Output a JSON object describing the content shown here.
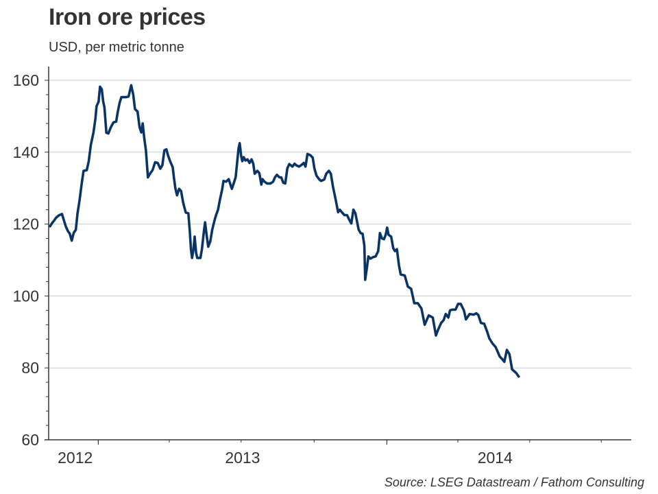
{
  "header": {
    "title": "Iron ore prices",
    "subtitle": "USD, per metric tonne"
  },
  "footer": {
    "source": "Source: LSEG Datastream / Fathom Consulting"
  },
  "colors": {
    "line": "#0b3466",
    "grid": "#cccccc",
    "axis": "#333333",
    "text": "#333333"
  },
  "chart_data": {
    "type": "line",
    "title": "Iron ore prices",
    "subtitle": "USD, per metric tonne",
    "xlabel": "",
    "ylabel": "USD, per metric tonne",
    "ylim": [
      60,
      165
    ],
    "xlim": [
      2012.078,
      2014.097
    ],
    "grid": true,
    "legend": "none",
    "y_ticks": [
      60,
      80,
      100,
      120,
      140,
      160
    ],
    "y_tick_labels": [
      "60",
      "80",
      "100",
      "120",
      "140",
      "160"
    ],
    "y_minor_step": 4,
    "x_major_ticks": [
      2012.25,
      2013.25
    ],
    "x_minor_ticks": [
      2012.496,
      2012.745,
      2012.998,
      2013.496,
      2013.745,
      2013.993
    ],
    "x_tick_labels": [
      {
        "label": "2012",
        "at": 2012.17
      },
      {
        "label": "2013",
        "at": 2012.75
      },
      {
        "label": "2014",
        "at": 2013.625
      }
    ],
    "series": [
      {
        "name": "Iron ore price",
        "points": [
          [
            2012.083,
            119.4
          ],
          [
            2012.09,
            120.3
          ],
          [
            2012.097,
            121.0
          ],
          [
            2012.104,
            121.8
          ],
          [
            2012.113,
            122.4
          ],
          [
            2012.124,
            122.8
          ],
          [
            2012.131,
            121.0
          ],
          [
            2012.138,
            119.2
          ],
          [
            2012.145,
            118.0
          ],
          [
            2012.151,
            117.4
          ],
          [
            2012.158,
            115.4
          ],
          [
            2012.165,
            117.6
          ],
          [
            2012.172,
            118.4
          ],
          [
            2012.178,
            123.0
          ],
          [
            2012.185,
            126.5
          ],
          [
            2012.192,
            131.0
          ],
          [
            2012.199,
            134.8
          ],
          [
            2012.21,
            135.0
          ],
          [
            2012.217,
            137.5
          ],
          [
            2012.224,
            142.0
          ],
          [
            2012.233,
            145.4
          ],
          [
            2012.24,
            149.3
          ],
          [
            2012.244,
            152.8
          ],
          [
            2012.251,
            154.0
          ],
          [
            2012.256,
            158.2
          ],
          [
            2012.262,
            157.5
          ],
          [
            2012.267,
            154.0
          ],
          [
            2012.271,
            152.6
          ],
          [
            2012.278,
            145.4
          ],
          [
            2012.285,
            145.2
          ],
          [
            2012.294,
            147.0
          ],
          [
            2012.303,
            148.3
          ],
          [
            2012.312,
            148.5
          ],
          [
            2012.317,
            151.0
          ],
          [
            2012.324,
            153.8
          ],
          [
            2012.33,
            155.3
          ],
          [
            2012.346,
            155.3
          ],
          [
            2012.355,
            155.5
          ],
          [
            2012.364,
            158.6
          ],
          [
            2012.371,
            156.0
          ],
          [
            2012.377,
            152.0
          ],
          [
            2012.386,
            151.3
          ],
          [
            2012.393,
            147.0
          ],
          [
            2012.399,
            145.5
          ],
          [
            2012.404,
            148.0
          ],
          [
            2012.409,
            144.0
          ],
          [
            2012.415,
            140.5
          ],
          [
            2012.422,
            133.0
          ],
          [
            2012.429,
            134.0
          ],
          [
            2012.438,
            135.0
          ],
          [
            2012.447,
            137.2
          ],
          [
            2012.456,
            137.0
          ],
          [
            2012.465,
            135.4
          ],
          [
            2012.472,
            136.4
          ],
          [
            2012.479,
            140.5
          ],
          [
            2012.486,
            140.8
          ],
          [
            2012.492,
            139.0
          ],
          [
            2012.499,
            137.5
          ],
          [
            2012.508,
            135.8
          ],
          [
            2012.512,
            133.0
          ],
          [
            2012.517,
            130.0
          ],
          [
            2012.523,
            128.0
          ],
          [
            2012.53,
            129.8
          ],
          [
            2012.537,
            129.2
          ],
          [
            2012.544,
            126.0
          ],
          [
            2012.553,
            123.2
          ],
          [
            2012.562,
            123.0
          ],
          [
            2012.567,
            118.0
          ],
          [
            2012.571,
            113.0
          ],
          [
            2012.575,
            110.6
          ],
          [
            2012.58,
            113.0
          ],
          [
            2012.584,
            116.5
          ],
          [
            2012.589,
            112.0
          ],
          [
            2012.593,
            110.6
          ],
          [
            2012.604,
            110.6
          ],
          [
            2012.609,
            113.0
          ],
          [
            2012.616,
            118.0
          ],
          [
            2012.62,
            120.5
          ],
          [
            2012.625,
            117.2
          ],
          [
            2012.631,
            113.7
          ],
          [
            2012.638,
            115.2
          ],
          [
            2012.645,
            118.5
          ],
          [
            2012.652,
            120.8
          ],
          [
            2012.658,
            122.5
          ],
          [
            2012.665,
            124.0
          ],
          [
            2012.672,
            127.0
          ],
          [
            2012.679,
            129.5
          ],
          [
            2012.684,
            132.0
          ],
          [
            2012.693,
            131.8
          ],
          [
            2012.702,
            132.5
          ],
          [
            2012.708,
            131.0
          ],
          [
            2012.713,
            129.8
          ],
          [
            2012.72,
            131.5
          ],
          [
            2012.726,
            133.0
          ],
          [
            2012.731,
            137.0
          ],
          [
            2012.736,
            141.0
          ],
          [
            2012.74,
            142.5
          ],
          [
            2012.745,
            139.0
          ],
          [
            2012.749,
            137.5
          ],
          [
            2012.754,
            138.6
          ],
          [
            2012.76,
            137.7
          ],
          [
            2012.767,
            138.0
          ],
          [
            2012.774,
            137.0
          ],
          [
            2012.781,
            138.0
          ],
          [
            2012.787,
            136.8
          ],
          [
            2012.792,
            134.0
          ],
          [
            2012.801,
            134.8
          ],
          [
            2012.808,
            134.2
          ],
          [
            2012.815,
            131.0
          ],
          [
            2012.819,
            132.5
          ],
          [
            2012.826,
            131.8
          ],
          [
            2012.835,
            131.3
          ],
          [
            2012.847,
            131.3
          ],
          [
            2012.856,
            131.8
          ],
          [
            2012.862,
            133.0
          ],
          [
            2012.869,
            133.7
          ],
          [
            2012.878,
            133.0
          ],
          [
            2012.884,
            133.0
          ],
          [
            2012.891,
            131.5
          ],
          [
            2012.898,
            131.3
          ],
          [
            2012.905,
            135.5
          ],
          [
            2012.912,
            136.7
          ],
          [
            2012.923,
            136.0
          ],
          [
            2012.93,
            136.8
          ],
          [
            2012.937,
            136.3
          ],
          [
            2012.946,
            136.0
          ],
          [
            2012.955,
            136.5
          ],
          [
            2012.962,
            137.0
          ],
          [
            2012.968,
            136.0
          ],
          [
            2012.975,
            139.5
          ],
          [
            2012.984,
            139.2
          ],
          [
            2012.993,
            138.5
          ],
          [
            2012.999,
            135.5
          ],
          [
            2013.006,
            133.5
          ],
          [
            2013.015,
            132.5
          ],
          [
            2013.022,
            132.0
          ],
          [
            2013.033,
            132.4
          ],
          [
            2013.04,
            134.0
          ],
          [
            2013.049,
            134.8
          ],
          [
            2013.056,
            134.0
          ],
          [
            2013.063,
            130.5
          ],
          [
            2013.072,
            127.0
          ],
          [
            2013.081,
            123.3
          ],
          [
            2013.087,
            124.0
          ],
          [
            2013.094,
            123.3
          ],
          [
            2013.103,
            122.5
          ],
          [
            2013.112,
            122.5
          ],
          [
            2013.121,
            121.0
          ],
          [
            2013.127,
            120.2
          ],
          [
            2013.134,
            124.0
          ],
          [
            2013.141,
            123.0
          ],
          [
            2013.146,
            121.0
          ],
          [
            2013.152,
            118.5
          ],
          [
            2013.159,
            117.5
          ],
          [
            2013.166,
            117.3
          ],
          [
            2013.172,
            114.0
          ],
          [
            2013.175,
            104.5
          ],
          [
            2013.181,
            108.0
          ],
          [
            2013.186,
            111.0
          ],
          [
            2013.193,
            110.4
          ],
          [
            2013.202,
            110.8
          ],
          [
            2013.211,
            111.0
          ],
          [
            2013.22,
            112.5
          ],
          [
            2013.226,
            117.5
          ],
          [
            2013.233,
            116.0
          ],
          [
            2013.24,
            115.8
          ],
          [
            2013.246,
            117.0
          ],
          [
            2013.251,
            119.0
          ],
          [
            2013.256,
            117.0
          ],
          [
            2013.265,
            116.5
          ],
          [
            2013.272,
            113.3
          ],
          [
            2013.278,
            112.5
          ],
          [
            2013.285,
            113.0
          ],
          [
            2013.292,
            108.5
          ],
          [
            2013.298,
            106.0
          ],
          [
            2013.312,
            105.7
          ],
          [
            2013.323,
            102.6
          ],
          [
            2013.334,
            102.0
          ],
          [
            2013.345,
            98.0
          ],
          [
            2013.357,
            98.0
          ],
          [
            2013.37,
            96.5
          ],
          [
            2013.381,
            92.0
          ],
          [
            2013.395,
            94.6
          ],
          [
            2013.409,
            94.0
          ],
          [
            2013.42,
            89.0
          ],
          [
            2013.427,
            90.5
          ],
          [
            2013.438,
            92.5
          ],
          [
            2013.447,
            93.3
          ],
          [
            2013.454,
            95.0
          ],
          [
            2013.463,
            94.0
          ],
          [
            2013.469,
            96.0
          ],
          [
            2013.476,
            96.2
          ],
          [
            2013.488,
            96.2
          ],
          [
            2013.497,
            97.8
          ],
          [
            2013.506,
            97.8
          ],
          [
            2013.517,
            96.0
          ],
          [
            2013.524,
            93.5
          ],
          [
            2013.537,
            95.0
          ],
          [
            2013.551,
            94.8
          ],
          [
            2013.56,
            95.2
          ],
          [
            2013.567,
            94.7
          ],
          [
            2013.576,
            92.5
          ],
          [
            2013.587,
            92.3
          ],
          [
            2013.598,
            90.0
          ],
          [
            2013.605,
            88.2
          ],
          [
            2013.616,
            86.8
          ],
          [
            2013.627,
            85.8
          ],
          [
            2013.641,
            83.2
          ],
          [
            2013.65,
            82.4
          ],
          [
            2013.657,
            81.7
          ],
          [
            2013.666,
            85.0
          ],
          [
            2013.675,
            83.8
          ],
          [
            2013.684,
            79.6
          ],
          [
            2013.698,
            78.6
          ],
          [
            2013.707,
            77.6
          ]
        ]
      }
    ]
  }
}
